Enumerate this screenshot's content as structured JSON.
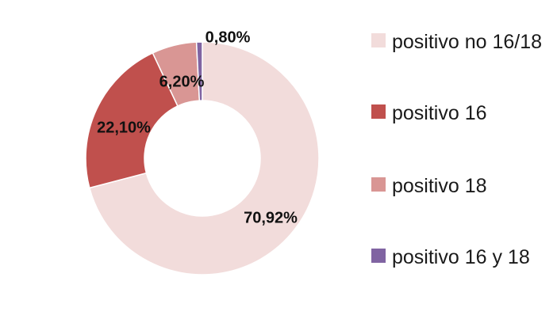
{
  "chart_data": {
    "type": "pie",
    "variant": "donut",
    "title": "",
    "series": [
      {
        "name": "positivo no 16/18",
        "value": 70.92,
        "label": "70,92%",
        "color": "#f2dcdb"
      },
      {
        "name": "positivo 16",
        "value": 22.1,
        "label": "22,10%",
        "color": "#c0504d"
      },
      {
        "name": "positivo 18",
        "value": 6.2,
        "label": "6,20%",
        "color": "#d99694"
      },
      {
        "name": "positivo 16 y 18",
        "value": 0.8,
        "label": "0,80%",
        "color": "#8064a2"
      }
    ],
    "legend_position": "right"
  },
  "legend": {
    "items": [
      {
        "label": "positivo no 16/18",
        "color": "#f2dcdb"
      },
      {
        "label": "positivo 16",
        "color": "#c0504d"
      },
      {
        "label": "positivo 18",
        "color": "#d99694"
      },
      {
        "label": "positivo 16 y 18",
        "color": "#8064a2"
      }
    ]
  }
}
